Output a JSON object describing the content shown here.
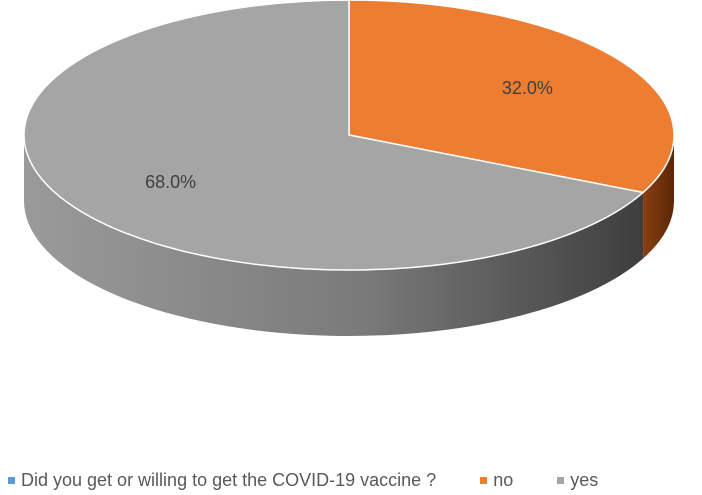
{
  "chart_data": {
    "type": "pie",
    "title": "",
    "categories": [
      "no",
      "yes"
    ],
    "values": [
      32.0,
      68.0
    ],
    "data_labels": [
      "32.0%",
      "68.0%"
    ],
    "colors": [
      "#ED7D31",
      "#A5A5A5"
    ],
    "style": "3d",
    "legend": {
      "position": "bottom",
      "entries": [
        {
          "label": "Did you get or willing to get the COVID-19 vaccine ?",
          "color": "#5B9BD5"
        },
        {
          "label": "no",
          "color": "#ED7D31"
        },
        {
          "label": "yes",
          "color": "#A5A5A5"
        }
      ]
    }
  }
}
